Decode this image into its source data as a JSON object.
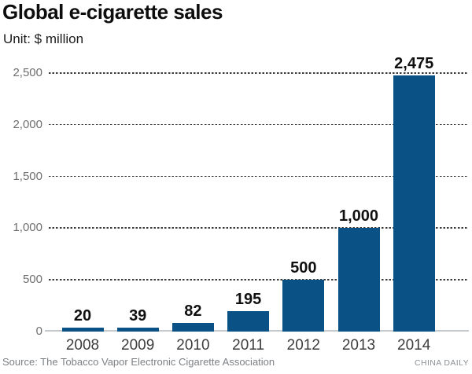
{
  "chart_data": {
    "type": "bar",
    "title": "Global e-cigarette sales",
    "subtitle": "Unit: $ million",
    "categories": [
      "2008",
      "2009",
      "2010",
      "2011",
      "2012",
      "2013",
      "2014"
    ],
    "values": [
      20,
      39,
      82,
      195,
      500,
      1000,
      2475
    ],
    "value_labels": [
      "20",
      "39",
      "82",
      "195",
      "500",
      "1,000",
      "2,475"
    ],
    "xlabel": "",
    "ylabel": "",
    "ylim": [
      0,
      2500
    ],
    "yticks": [
      0,
      500,
      1000,
      1500,
      2000,
      2500
    ],
    "ytick_labels": [
      "0",
      "500",
      "1,000",
      "1,500",
      "2,000",
      "2,500"
    ],
    "grid": "horizontal-dashed",
    "legend": "none",
    "bar_color": "#0a5185",
    "source": "Source: The Tobacco Vapor Electronic Cigarette Association",
    "credit": "CHINA DAILY"
  }
}
